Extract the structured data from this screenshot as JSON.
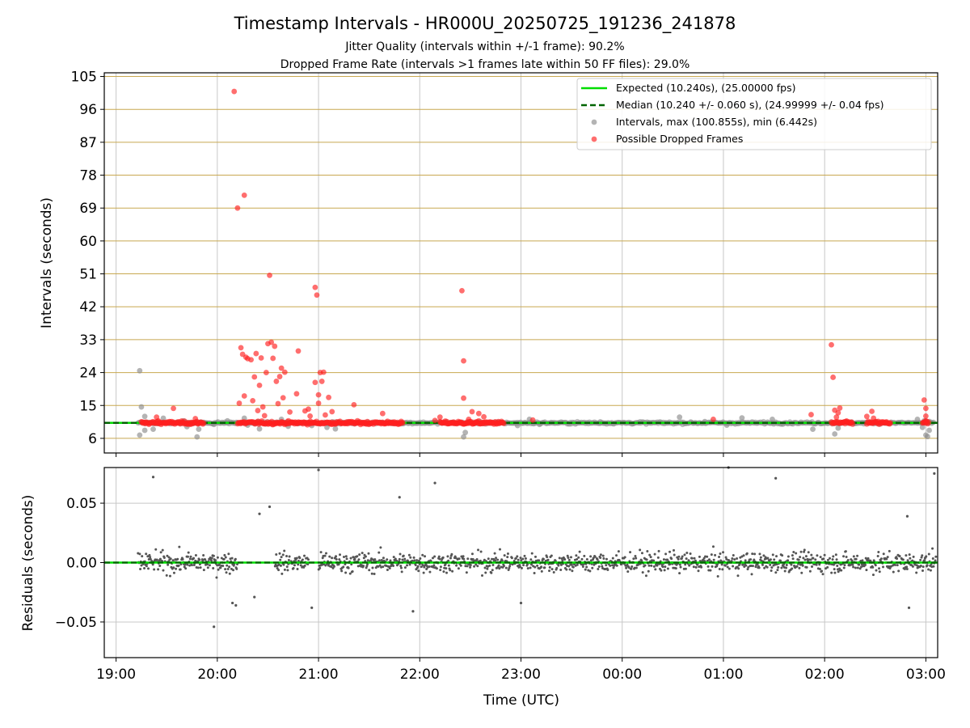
{
  "chart_data": [
    {
      "type": "scatter",
      "panel": "intervals",
      "title": "Timestamp Intervals - HR000U_20250725_191236_241878",
      "subtitle_1": "Jitter Quality (intervals within +/-1 frame): 90.2%",
      "subtitle_2": "Dropped Frame Rate (intervals >1 frames late within 50 FF files): 29.0%",
      "ylabel": "Intervals (seconds)",
      "xlim": [
        "18:53",
        "03:07"
      ],
      "ylim": [
        2,
        106
      ],
      "y_ticks": [
        "6",
        "15",
        "24",
        "33",
        "42",
        "51",
        "60",
        "69",
        "78",
        "87",
        "96",
        "105"
      ],
      "y_tick_values": [
        6,
        15,
        24,
        33,
        42,
        51,
        60,
        69,
        78,
        87,
        96,
        105
      ],
      "grid": "vertical gray at hours, horizontal tan at y ticks",
      "legend_position": "top-right",
      "legend": [
        "Expected (10.240s), (25.00000 fps)",
        "Median (10.240 +/- 0.060 s), (24.99999 +/- 0.04 fps)",
        "Intervals, max (100.855s), min (6.442s)",
        "Possible Dropped Frames"
      ],
      "expected_interval": 10.24,
      "median_interval": 10.24,
      "normal_intervals": [
        [
          "19:14",
          24.5
        ],
        [
          "19:15",
          14.6
        ],
        [
          "19:17",
          12.0
        ],
        [
          "19:17",
          8.2
        ],
        [
          "19:14",
          6.9
        ],
        [
          "19:22",
          8.5
        ],
        [
          "19:28",
          11.5
        ],
        [
          "19:40",
          10.8
        ],
        [
          "19:42",
          9.2
        ],
        [
          "19:49",
          8.5
        ],
        [
          "19:48",
          6.4
        ],
        [
          "19:58",
          9.8
        ],
        [
          "20:06",
          10.8
        ],
        [
          "20:16",
          11.5
        ],
        [
          "20:18",
          9.6
        ],
        [
          "20:25",
          8.6
        ],
        [
          "20:38",
          11.2
        ],
        [
          "20:42",
          9.3
        ],
        [
          "20:56",
          9.5
        ],
        [
          "21:05",
          9.0
        ],
        [
          "21:10",
          8.6
        ],
        [
          "22:20",
          10.4
        ],
        [
          "22:27",
          7.6
        ],
        [
          "22:26",
          6.4
        ],
        [
          "22:58",
          9.5
        ],
        [
          "23:05",
          11.2
        ],
        [
          "23:11",
          9.8
        ],
        [
          "23:47",
          10.5
        ],
        [
          "00:34",
          11.8
        ],
        [
          "00:49",
          10.6
        ],
        [
          "01:02",
          9.6
        ],
        [
          "01:11",
          11.6
        ],
        [
          "01:29",
          11.2
        ],
        [
          "01:53",
          8.5
        ],
        [
          "02:06",
          7.2
        ],
        [
          "02:08",
          8.8
        ],
        [
          "02:55",
          11.2
        ],
        [
          "02:59",
          10.8
        ],
        [
          "02:58",
          9.0
        ],
        [
          "03:00",
          6.9
        ],
        [
          "03:01",
          6.5
        ],
        [
          "03:02",
          8.2
        ]
      ],
      "dropped_frames": [
        [
          "19:24",
          11.8
        ],
        [
          "19:25",
          10.8
        ],
        [
          "19:30",
          10.2
        ],
        [
          "19:34",
          14.2
        ],
        [
          "19:47",
          11.4
        ],
        [
          "20:10",
          100.9
        ],
        [
          "20:12",
          69.0
        ],
        [
          "20:16",
          72.5
        ],
        [
          "20:13",
          15.6
        ],
        [
          "20:14",
          30.8
        ],
        [
          "20:15",
          29.0
        ],
        [
          "20:16",
          17.6
        ],
        [
          "20:17",
          28.2
        ],
        [
          "20:18",
          27.8
        ],
        [
          "20:20",
          27.5
        ],
        [
          "20:21",
          16.3
        ],
        [
          "20:22",
          22.8
        ],
        [
          "20:23",
          29.2
        ],
        [
          "20:24",
          13.6
        ],
        [
          "20:25",
          20.5
        ],
        [
          "20:26",
          28.0
        ],
        [
          "20:27",
          14.6
        ],
        [
          "20:28",
          12.2
        ],
        [
          "20:29",
          24.0
        ],
        [
          "20:30",
          31.9
        ],
        [
          "20:31",
          50.6
        ],
        [
          "20:32",
          32.3
        ],
        [
          "20:33",
          27.9
        ],
        [
          "20:34",
          31.2
        ],
        [
          "20:35",
          21.6
        ],
        [
          "20:36",
          15.5
        ],
        [
          "20:37",
          22.9
        ],
        [
          "20:38",
          25.2
        ],
        [
          "20:39",
          17.1
        ],
        [
          "20:40",
          24.1
        ],
        [
          "20:43",
          13.2
        ],
        [
          "20:47",
          18.2
        ],
        [
          "20:48",
          29.9
        ],
        [
          "20:52",
          13.5
        ],
        [
          "20:54",
          14.0
        ],
        [
          "20:55",
          12.1
        ],
        [
          "20:58",
          21.3
        ],
        [
          "20:58",
          47.3
        ],
        [
          "20:59",
          45.2
        ],
        [
          "21:00",
          15.6
        ],
        [
          "21:00",
          17.9
        ],
        [
          "21:01",
          24.0
        ],
        [
          "21:02",
          21.6
        ],
        [
          "21:03",
          24.1
        ],
        [
          "21:04",
          12.4
        ],
        [
          "21:06",
          17.2
        ],
        [
          "21:08",
          13.3
        ],
        [
          "21:21",
          15.2
        ],
        [
          "21:38",
          12.8
        ],
        [
          "22:09",
          10.9
        ],
        [
          "22:12",
          11.8
        ],
        [
          "22:25",
          46.4
        ],
        [
          "22:26",
          17.0
        ],
        [
          "22:26",
          27.2
        ],
        [
          "22:29",
          11.2
        ],
        [
          "22:31",
          13.3
        ],
        [
          "22:35",
          12.8
        ],
        [
          "22:38",
          11.9
        ],
        [
          "23:07",
          11.0
        ],
        [
          "00:54",
          11.2
        ],
        [
          "01:52",
          12.5
        ],
        [
          "02:04",
          31.6
        ],
        [
          "02:05",
          22.7
        ],
        [
          "02:06",
          13.7
        ],
        [
          "02:07",
          11.8
        ],
        [
          "02:08",
          13.0
        ],
        [
          "02:09",
          14.3
        ],
        [
          "02:25",
          12.0
        ],
        [
          "02:28",
          13.4
        ],
        [
          "02:29",
          11.5
        ],
        [
          "02:59",
          16.5
        ],
        [
          "03:00",
          14.2
        ],
        [
          "03:00",
          12.1
        ],
        [
          "03:00",
          10.8
        ]
      ],
      "dense_bands": [
        [
          "19:15",
          "19:52"
        ],
        [
          "20:12",
          "21:40"
        ],
        [
          "21:40",
          "21:50"
        ],
        [
          "22:12",
          "22:50"
        ],
        [
          "02:04",
          "02:17"
        ],
        [
          "02:25",
          "02:39"
        ],
        [
          "02:58",
          "03:02"
        ]
      ]
    },
    {
      "type": "scatter",
      "panel": "residuals",
      "ylabel": "Residuals (seconds)",
      "xlabel": "Time (UTC)",
      "ylim": [
        -0.08,
        0.08
      ],
      "y_ticks": [
        "−0.05",
        "0.00",
        "0.05"
      ],
      "y_tick_values": [
        -0.05,
        0.0,
        0.05
      ],
      "x_ticks": [
        "19:00",
        "20:00",
        "21:00",
        "22:00",
        "23:00",
        "00:00",
        "01:00",
        "02:00",
        "03:00"
      ],
      "outliers": [
        [
          "19:22",
          0.072
        ],
        [
          "20:31",
          0.047
        ],
        [
          "20:25",
          0.041
        ],
        [
          "21:00",
          0.078
        ],
        [
          "21:48",
          0.055
        ],
        [
          "22:09",
          0.067
        ],
        [
          "01:03",
          0.08
        ],
        [
          "01:31",
          0.071
        ],
        [
          "02:49",
          0.039
        ],
        [
          "03:05",
          0.075
        ],
        [
          "19:58",
          -0.054
        ],
        [
          "20:09",
          -0.034
        ],
        [
          "20:11",
          -0.036
        ],
        [
          "20:22",
          -0.029
        ],
        [
          "20:56",
          -0.038
        ],
        [
          "21:56",
          -0.041
        ],
        [
          "23:00",
          -0.034
        ],
        [
          "02:50",
          -0.038
        ]
      ],
      "residual_spread": 0.012,
      "residual_gaps": [
        [
          "20:12",
          "20:34"
        ],
        [
          "20:54",
          "21:00"
        ]
      ]
    }
  ],
  "colors": {
    "expected": "#00dd00",
    "median": "#006400",
    "intervals": "#8c8c8c",
    "dropped": "#ff2020",
    "residual": "#555555",
    "hgrid_top": "#c8a850",
    "grid": "#c8c8c8"
  }
}
